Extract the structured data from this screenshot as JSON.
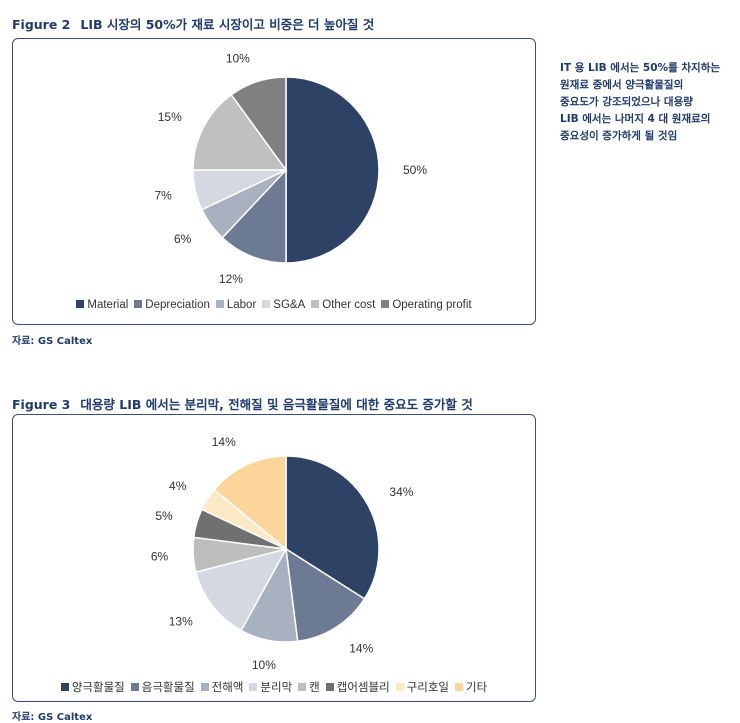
{
  "figure2": {
    "num": "Figure 2",
    "title": "LIB 시장의 50%가 재료 시장이고 비중은 더 높아질 것",
    "source": "자료: GS Caltex"
  },
  "figure3": {
    "num": "Figure 3",
    "title": "대용량 LIB 에서는 분리막, 전해질 및 음극활물질에 대한 중요도 증가할 것",
    "source": "자료: GS Caltex"
  },
  "note": {
    "lines": [
      "IT 용 LIB 에서는 50%를 차지하는",
      "원재료 중에서 양극활물질의",
      "중요도가 강조되었으나 대용량",
      "LIB 에서는 나머지 4 대 원재료의",
      "중요성이 증가하게 될 것임"
    ]
  },
  "chart_data": [
    {
      "type": "pie",
      "categories": [
        "Material",
        "Depreciation",
        "Labor",
        "SG&A",
        "Other cost",
        "Operating profit"
      ],
      "values": [
        50,
        12,
        6,
        7,
        15,
        10
      ],
      "labels": [
        "50%",
        "12%",
        "6%",
        "7%",
        "15%",
        "10%"
      ],
      "colors": [
        "#2e4266",
        "#6c7a94",
        "#a8b1c0",
        "#d3d8e1",
        "#c0c0c0",
        "#808080"
      ],
      "legend_position": "bottom"
    },
    {
      "type": "pie",
      "categories": [
        "양극활물질",
        "음극활물질",
        "전해액",
        "분리막",
        "캔",
        "캡어셈블리",
        "구리호일",
        "기타"
      ],
      "values": [
        34,
        14,
        10,
        13,
        6,
        5,
        4,
        14
      ],
      "labels": [
        "34%",
        "14%",
        "10%",
        "13%",
        "6%",
        "5%",
        "4%",
        "14%"
      ],
      "colors": [
        "#2e4266",
        "#6c7a94",
        "#a8b1c0",
        "#d3d8e1",
        "#bdbdbd",
        "#707070",
        "#fbe8c5",
        "#fbd59a"
      ],
      "legend_position": "bottom"
    }
  ]
}
